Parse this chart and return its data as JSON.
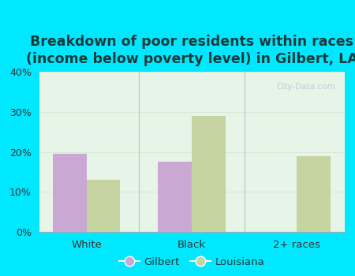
{
  "categories": [
    "White",
    "Black",
    "2+ races"
  ],
  "gilbert_values": [
    19.5,
    17.5,
    0
  ],
  "louisiana_values": [
    13.0,
    29.0,
    19.0
  ],
  "gilbert_color": "#c9a8d4",
  "louisiana_color": "#c5d4a0",
  "title": "Breakdown of poor residents within races\n(income below poverty level) in Gilbert, LA",
  "ylim": [
    0,
    40
  ],
  "yticks": [
    0,
    10,
    20,
    30,
    40
  ],
  "ytick_labels": [
    "0%",
    "10%",
    "20%",
    "30%",
    "40%"
  ],
  "outer_bg": "#00e8ff",
  "plot_bg_color": "#e6f5e8",
  "title_fontsize": 12.5,
  "bar_width": 0.32,
  "legend_labels": [
    "Gilbert",
    "Louisiana"
  ],
  "watermark": "City-Data.com",
  "title_color": "#1a3a3a"
}
